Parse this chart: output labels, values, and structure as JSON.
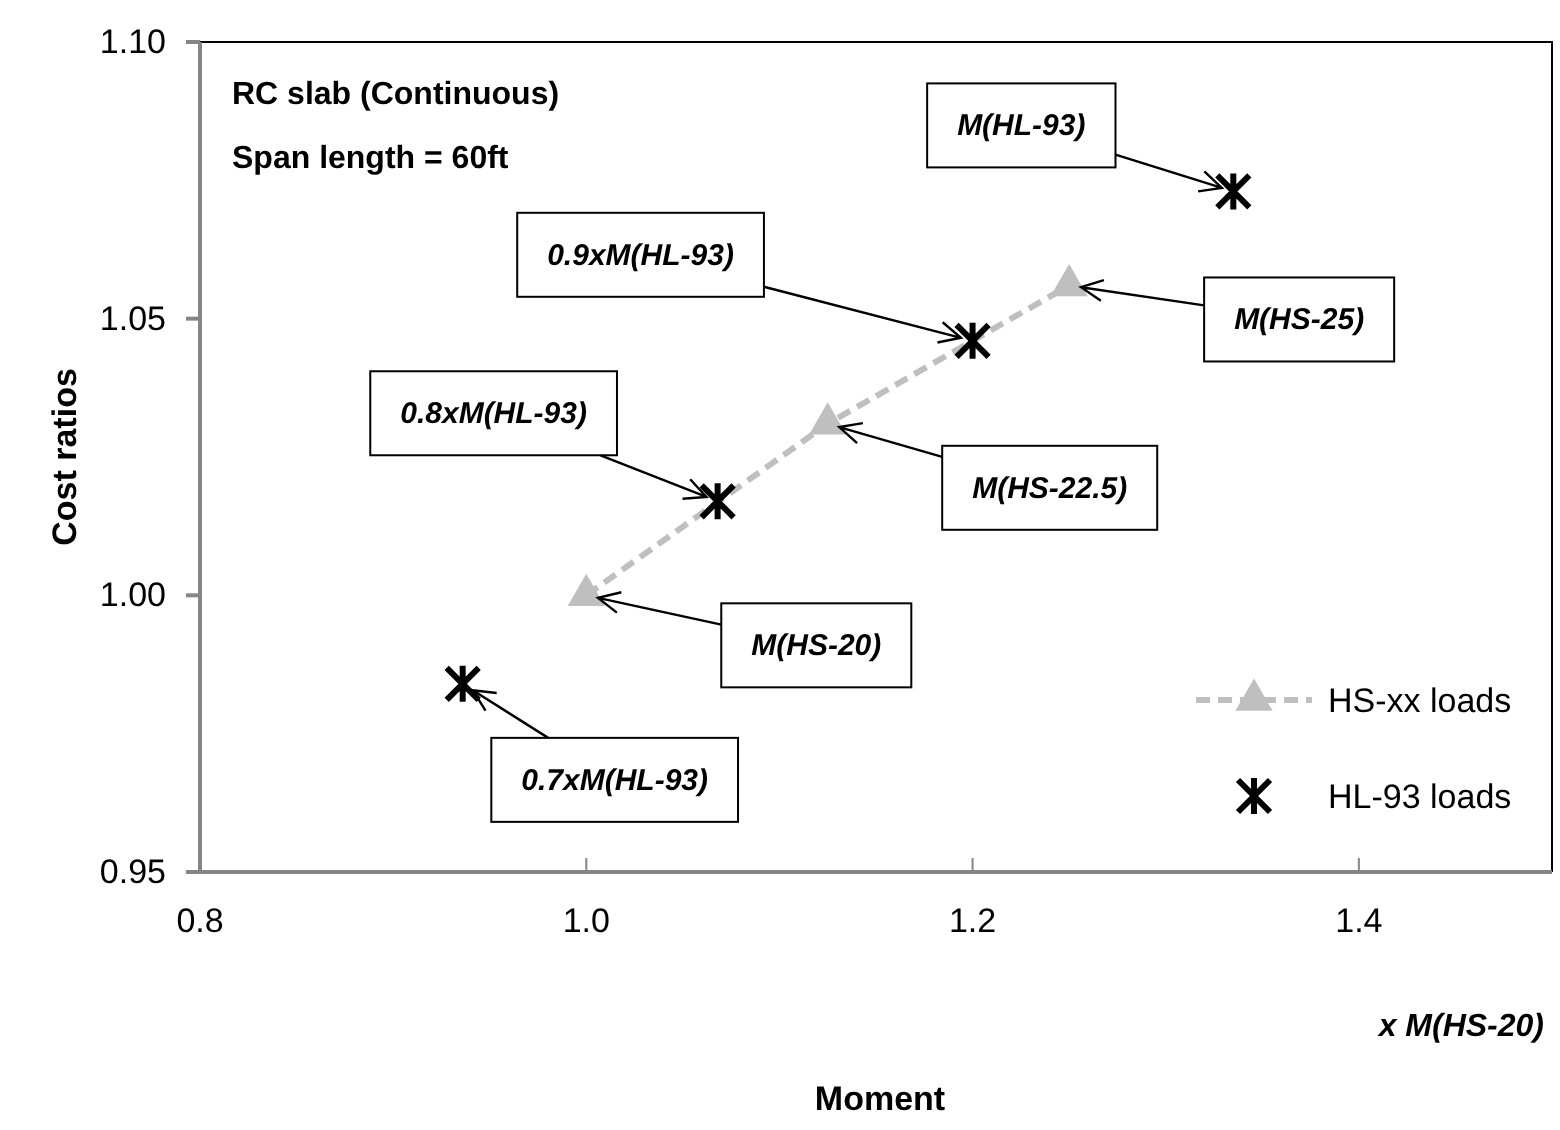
{
  "chart_data": {
    "type": "scatter",
    "title": "RC slab (Continuous)",
    "subtitle": "Span length = 60ft",
    "xlabel": "Moment",
    "ylabel": "Cost ratios",
    "xlim": [
      0.8,
      1.5
    ],
    "xticks": [
      0.8,
      {
        "value": 1.0,
        "label": "1.0"
      },
      1.2,
      1.4
    ],
    "ylim": [
      0.95,
      1.1
    ],
    "yticks": [
      0.95,
      {
        "value": 1.0,
        "label": "1.00"
      },
      1.05,
      {
        "value": 1.1,
        "label": "1.10"
      }
    ],
    "grid": false,
    "legend": "bottom right",
    "series": [
      {
        "name": "HS-xx loads",
        "type": "line",
        "color": "#bfbfbf",
        "marker": "triangle",
        "line_style": "dashed",
        "x": [
          1.0,
          1.125,
          1.25
        ],
        "values": [
          1.0,
          1.031,
          1.056
        ]
      },
      {
        "name": "HL-93 loads",
        "type": "scatter",
        "color": "#000000",
        "marker": "cross",
        "x": [
          0.936,
          1.068,
          1.2,
          1.335
        ],
        "values": [
          0.984,
          1.017,
          1.046,
          1.073
        ]
      }
    ],
    "annotations": [
      {
        "text": "M(HL-93)",
        "x": 1.335,
        "y": 1.073
      },
      {
        "text": "0.9xM(HL-93)",
        "x": 1.2,
        "y": 1.046
      },
      {
        "text": "M(HS-25)",
        "x": 1.25,
        "y": 1.056
      },
      {
        "text": "0.8xM(HL-93)",
        "x": 1.068,
        "y": 1.017
      },
      {
        "text": "M(HS-22.5)",
        "x": 1.125,
        "y": 1.031
      },
      {
        "text": "M(HS-20)",
        "x": 1.0,
        "y": 1.0
      },
      {
        "text": "0.7xM(HL-93)",
        "x": 0.936,
        "y": 0.984
      },
      "x M(HS-20)"
    ]
  }
}
